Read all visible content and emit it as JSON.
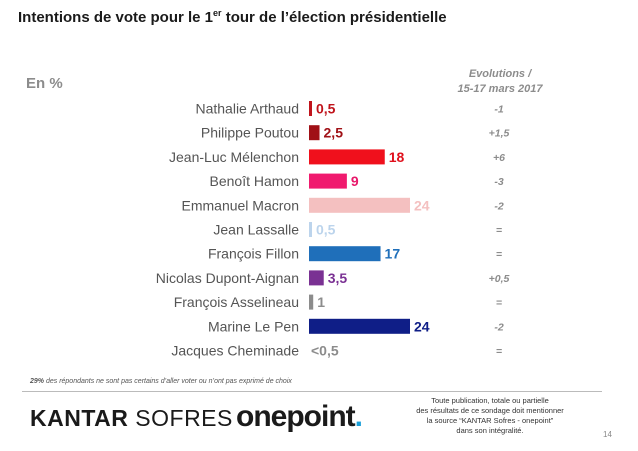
{
  "header": {
    "title_prefix": "Intentions de vote pour le 1",
    "title_sup": "er",
    "title_suffix": " tour de l’élection présidentielle",
    "unit": "En %",
    "evolution_line1": "Evolutions /",
    "evolution_line2": "15-17 mars 2017"
  },
  "chart_data": {
    "type": "bar",
    "orientation": "horizontal",
    "categories": [
      "Nathalie Arthaud",
      "Philippe Poutou",
      "Jean-Luc Mélenchon",
      "Benoît Hamon",
      "Emmanuel Macron",
      "Jean Lassalle",
      "François Fillon",
      "Nicolas Dupont-Aignan",
      "François Asselineau",
      "Marine Le Pen",
      "Jacques Cheminade"
    ],
    "values": [
      0.5,
      2.5,
      18,
      9,
      24,
      0.5,
      17,
      3.5,
      1,
      24,
      0
    ],
    "value_labels": [
      "0,5",
      "2,5",
      "18",
      "9",
      "24",
      "0,5",
      "17",
      "3,5",
      "1",
      "24",
      "<0,5"
    ],
    "colors": [
      "#c0141c",
      "#a01016",
      "#f0101c",
      "#f01a6e",
      "#f4c0c0",
      "#bcd4ec",
      "#1f6fba",
      "#7a3193",
      "#8c8c8c",
      "#0f1e87",
      "#8c8c8c"
    ],
    "label_colors": [
      "#c0141c",
      "#a01016",
      "#e0101c",
      "#e8186a",
      "#f4c0c0",
      "#bcd4ec",
      "#1f6fba",
      "#7a3193",
      "#8c8c8c",
      "#0f1e87",
      "#8c8c8c"
    ],
    "evolutions": [
      "-1",
      "+1,5",
      "+6",
      "-3",
      "-2",
      "=",
      "=",
      "+0,5",
      "=",
      "-2",
      "="
    ],
    "xlim": [
      0,
      24
    ]
  },
  "footnote": {
    "bold": "29%",
    "rest": " des répondants ne sont pas certains d’aller voter ou n’ont pas exprimé de choix"
  },
  "logos": {
    "kantar_bold": "KANTAR",
    "kantar_light": " SOFRES",
    "onepoint": "onepoint",
    "onepoint_dot": "."
  },
  "notice": {
    "line1": "Toute publication, totale ou partielle",
    "line2": "des résultats de ce sondage doit mentionner",
    "line3": "la source “KANTAR Sofres - onepoint”",
    "line4": "dans son intégralité."
  },
  "page_number": "14",
  "colors": {
    "grey_text": "#8c8c8c",
    "onepoint_accent": "#1a9fd8"
  }
}
